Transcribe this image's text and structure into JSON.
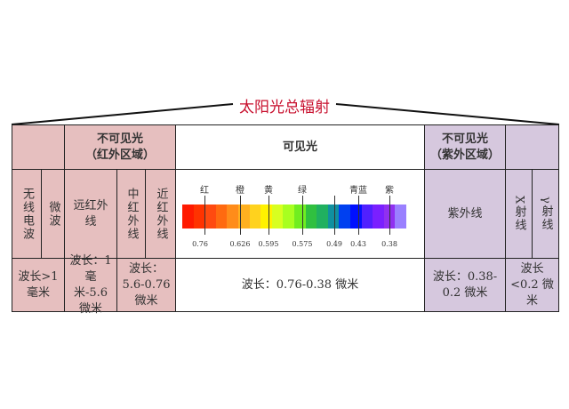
{
  "title": "太阳光总辐射",
  "infrared": {
    "header": "不可见光",
    "header_sub": "（红外区域）",
    "radio": "无线电波",
    "microwave": "微波",
    "far_ir": "远红外线",
    "mid_ir": "中红外线",
    "near_ir": "近红外线",
    "wl_radio": "波长>1毫米",
    "wl_far": "波长：1毫米-5.6微米",
    "wl_mid_near": "波长：5.6-0.76微米"
  },
  "visible": {
    "header": "可见光",
    "wavelength": "波长：0.76-0.38 微米",
    "colors": [
      {
        "label": "红",
        "value": "0.76"
      },
      {
        "label": "橙",
        "value": "0.626"
      },
      {
        "label": "黄",
        "value": "0.595"
      },
      {
        "label": "绿",
        "value": "0.575"
      },
      {
        "label": "",
        "value": "0.49"
      },
      {
        "label": "青蓝",
        "value": "0.43"
      },
      {
        "label": "紫",
        "value": "0.38"
      }
    ],
    "spectrum": [
      "#ff1a00",
      "#ff3300",
      "#ff4a10",
      "#ff6a10",
      "#ff8c1a",
      "#ffb020",
      "#ffd21e",
      "#fff200",
      "#d8ff20",
      "#a8ff20",
      "#70ee20",
      "#30c040",
      "#20b060",
      "#1090a0",
      "#0040f0",
      "#0010ff",
      "#5020ff",
      "#7a20ff",
      "#9030f0",
      "#9a80ff"
    ]
  },
  "ultraviolet": {
    "header": "不可见光",
    "header_sub": "（紫外区域）",
    "uv": "紫外线",
    "xray": "X射线",
    "gamma": "γ射线",
    "wl_uv": "波长：0.38-0.2 微米",
    "wl_short": "波长<0.2 微米"
  }
}
